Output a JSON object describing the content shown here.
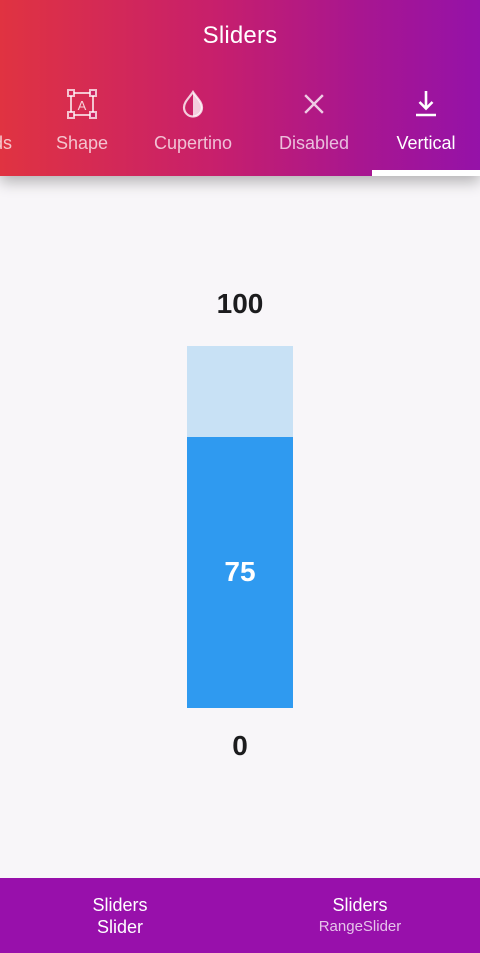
{
  "app": {
    "title": "Sliders"
  },
  "tabs": [
    {
      "label": "ds",
      "icon": "clipped-tab-icon",
      "active": false
    },
    {
      "label": "Shape",
      "icon": "shape-frame-icon",
      "active": false
    },
    {
      "label": "Cupertino",
      "icon": "contrast-drop-icon",
      "active": false
    },
    {
      "label": "Disabled",
      "icon": "close-icon",
      "active": false
    },
    {
      "label": "Vertical",
      "icon": "download-arrow-icon",
      "active": true
    }
  ],
  "slider": {
    "max_label": "100",
    "min_label": "0",
    "value_label": "75",
    "min": 0,
    "max": 100,
    "value": 75,
    "colors": {
      "track": "#c8e1f5",
      "fill": "#2f9af0"
    }
  },
  "bottom_nav": [
    {
      "title": "Sliders",
      "subtitle": "Slider",
      "active": true
    },
    {
      "title": "Sliders",
      "subtitle": "RangeSlider",
      "active": false
    }
  ],
  "colors": {
    "header_gradient_start": "#e03341",
    "header_gradient_end": "#9512a8",
    "bottom_nav": "#9810ab",
    "background": "#f8f6f9"
  }
}
